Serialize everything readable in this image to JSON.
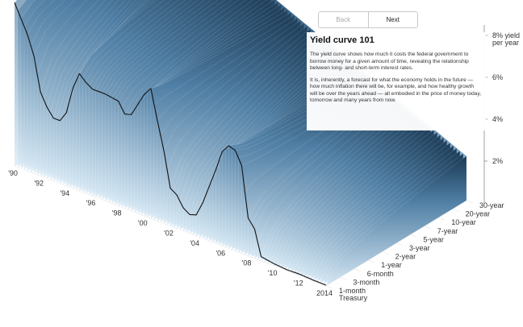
{
  "nav": {
    "back_label": "Back",
    "next_label": "Next"
  },
  "panel": {
    "title": "Yield curve 101",
    "paragraphs": [
      "The yield curve shows how much it costs the federal government to borrow money for a given amount of time, revealing the relationship between long- and short-term interest rates.",
      "It is, inherently, a forecast for what the economy holds in the future — how much inflation there will be, for example, and how healthy growth will be over the years ahead — all embodied in the price of money today, tomorrow and many years from now."
    ]
  },
  "colors": {
    "surface_dark": "#1b3a55",
    "surface_light": "#d6e8f4",
    "line": "#111111"
  },
  "chart_data": {
    "type": "area",
    "title": "",
    "x_label": "",
    "y_label": "",
    "z_label": "",
    "x_ticks": [
      "'90",
      "'92",
      "'94",
      "'96",
      "'98",
      "'00",
      "'02",
      "'04",
      "'06",
      "'08",
      "'10",
      "'12",
      "2014"
    ],
    "maturity_ticks": [
      "1-month Treasury",
      "3-month",
      "6-month",
      "1-year",
      "2-year",
      "3-year",
      "5-year",
      "7-year",
      "10-year",
      "20-year",
      "30-year"
    ],
    "y_ticks": [
      {
        "value": 2,
        "label": "2%"
      },
      {
        "value": 4,
        "label": "4%"
      },
      {
        "value": 6,
        "label": "6%"
      },
      {
        "value": 8,
        "label": "8% yield per year"
      }
    ],
    "ylim": [
      0,
      9
    ],
    "series": [
      {
        "years": [
          1990,
          1991,
          1991.5,
          1992,
          1992.5,
          1993,
          1993.5,
          1994,
          1994.5,
          1995,
          1995.5,
          1996,
          1997,
          1998,
          1998.5,
          1999,
          2000,
          2000.5,
          2001,
          2001.5,
          2002,
          2002.5,
          2003,
          2003.5,
          2004,
          2004.5,
          2005,
          2005.5,
          2006,
          2006.5,
          2007,
          2007.5,
          2008,
          2008.5,
          2009,
          2010,
          2011,
          2012,
          2013,
          2014
        ],
        "values": [
          7.8,
          6.5,
          5.6,
          4.0,
          3.4,
          3.0,
          3.0,
          3.5,
          4.8,
          5.6,
          5.3,
          5.1,
          5.1,
          5.0,
          4.5,
          4.6,
          5.8,
          6.2,
          4.8,
          3.5,
          1.8,
          1.6,
          1.1,
          0.9,
          1.0,
          1.7,
          2.6,
          3.5,
          4.5,
          4.9,
          4.8,
          4.2,
          1.8,
          1.4,
          0.2,
          0.1,
          0.05,
          0.07,
          0.04,
          0.03
        ]
      }
    ]
  }
}
